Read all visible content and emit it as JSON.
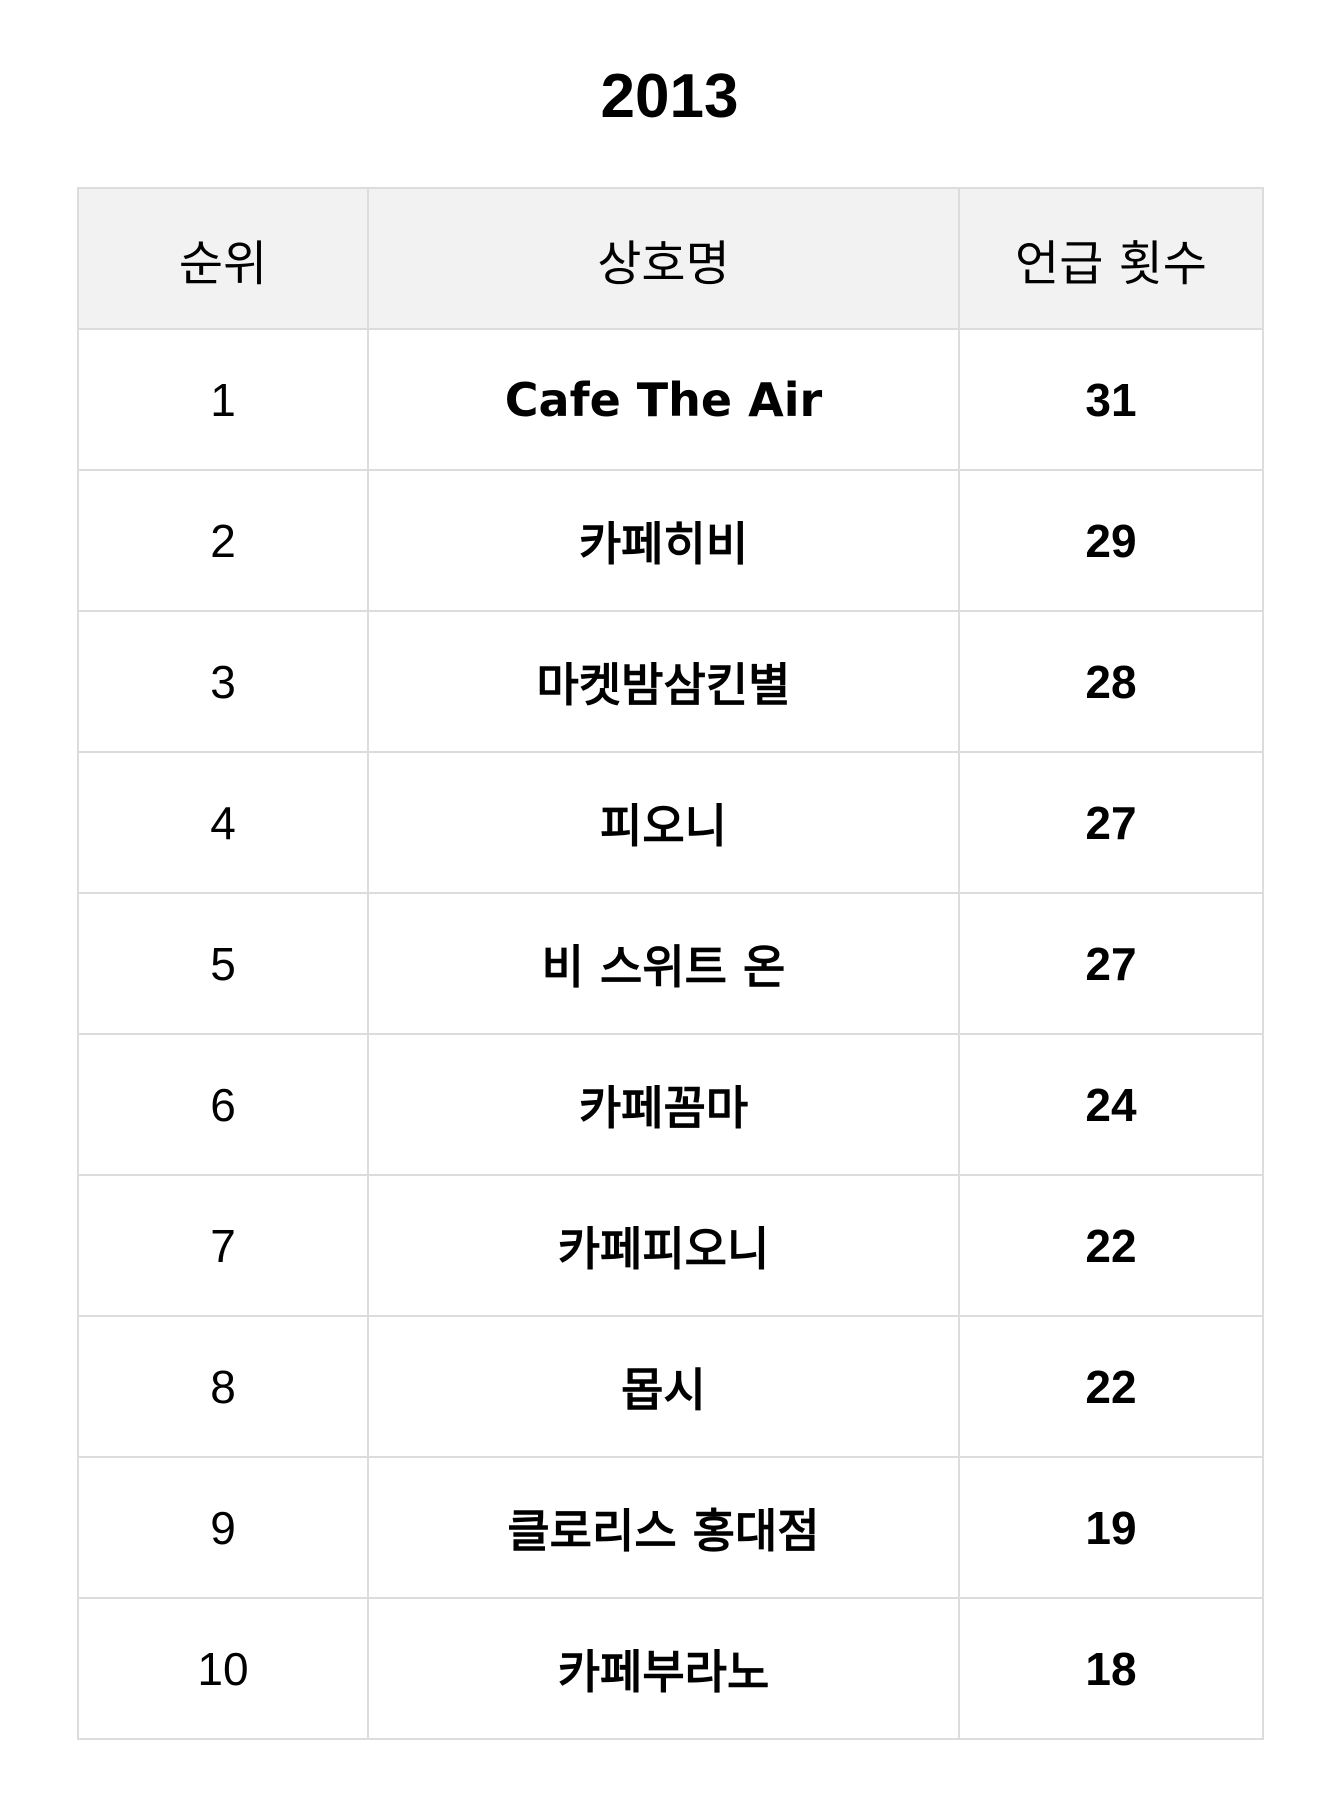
{
  "title": "2013",
  "table": {
    "headers": [
      "순위",
      "상호명",
      "언급 횟수"
    ],
    "rows": [
      {
        "rank": "1",
        "name": "Cafe The Air",
        "count": "31"
      },
      {
        "rank": "2",
        "name": "카페히비",
        "count": "29"
      },
      {
        "rank": "3",
        "name": "마켓밤삼킨별",
        "count": "28"
      },
      {
        "rank": "4",
        "name": "피오니",
        "count": "27"
      },
      {
        "rank": "5",
        "name": "비 스위트 온",
        "count": "27"
      },
      {
        "rank": "6",
        "name": "카페꼼마",
        "count": "24"
      },
      {
        "rank": "7",
        "name": "카페피오니",
        "count": "22"
      },
      {
        "rank": "8",
        "name": "몹시",
        "count": "22"
      },
      {
        "rank": "9",
        "name": "클로리스 홍대점",
        "count": "19"
      },
      {
        "rank": "10",
        "name": "카페부라노",
        "count": "18"
      }
    ]
  },
  "colors": {
    "header_bg": "#f2f2f2",
    "border": "#dcdcdc",
    "text": "#000000",
    "background": "#ffffff"
  }
}
